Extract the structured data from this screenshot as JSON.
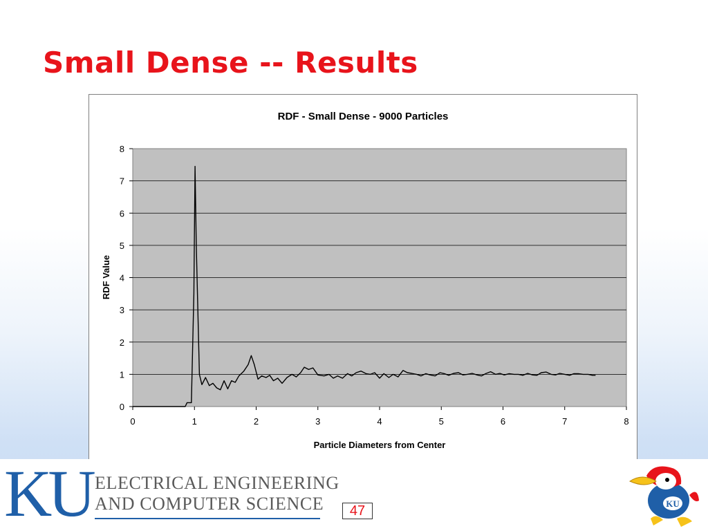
{
  "slide": {
    "title": "Small Dense -- Results",
    "page_number": "47"
  },
  "footer": {
    "logo_text": "KU",
    "dept_line_1": "ELECTRICAL ENGINEERING",
    "dept_line_2": "AND COMPUTER SCIENCE",
    "mascot_badge": "KU"
  },
  "colors": {
    "title": "#e8141b",
    "plot_area": "#c0c0c0",
    "series_line": "#000000",
    "ku_blue": "#1f5fa8"
  },
  "chart_data": {
    "type": "line",
    "title": "RDF - Small Dense - 9000 Particles",
    "xlabel": "Particle Diameters from Center",
    "ylabel": "RDF Value",
    "xlim": [
      0,
      8
    ],
    "ylim": [
      0,
      8
    ],
    "xticks": [
      0,
      1,
      2,
      3,
      4,
      5,
      6,
      7,
      8
    ],
    "yticks": [
      0,
      1,
      2,
      3,
      4,
      5,
      6,
      7,
      8
    ],
    "grid": "horizontal",
    "legend": "none",
    "series": [
      {
        "x": [
          0,
          0.85,
          0.88,
          0.95,
          0.99,
          1.01,
          1.03,
          1.08,
          1.12,
          1.18,
          1.24,
          1.3,
          1.36,
          1.42,
          1.48,
          1.54,
          1.6,
          1.66,
          1.72,
          1.8,
          1.87,
          1.92,
          1.97,
          2.03,
          2.09,
          2.16,
          2.22,
          2.28,
          2.35,
          2.42,
          2.5,
          2.58,
          2.65,
          2.72,
          2.78,
          2.85,
          2.92,
          3.0,
          3.1,
          3.18,
          3.25,
          3.32,
          3.4,
          3.48,
          3.55,
          3.62,
          3.7,
          3.78,
          3.85,
          3.92,
          4.0,
          4.07,
          4.15,
          4.22,
          4.3,
          4.38,
          4.45,
          4.52,
          4.6,
          4.67,
          4.75,
          4.82,
          4.9,
          4.98,
          5.05,
          5.12,
          5.2,
          5.28,
          5.35,
          5.42,
          5.5,
          5.58,
          5.65,
          5.72,
          5.8,
          5.88,
          5.95,
          6.02,
          6.1,
          6.18,
          6.25,
          6.32,
          6.4,
          6.48,
          6.55,
          6.62,
          6.7,
          6.78,
          6.85,
          6.92,
          7.0,
          7.08,
          7.15,
          7.22,
          7.3,
          7.38,
          7.45,
          7.5
        ],
        "y": [
          0,
          0,
          0.12,
          0.12,
          3.5,
          7.45,
          5.0,
          1.0,
          0.68,
          0.9,
          0.65,
          0.72,
          0.58,
          0.52,
          0.8,
          0.55,
          0.8,
          0.75,
          0.95,
          1.1,
          1.3,
          1.58,
          1.3,
          0.85,
          0.95,
          0.9,
          0.97,
          0.8,
          0.88,
          0.72,
          0.9,
          1.0,
          0.92,
          1.05,
          1.22,
          1.15,
          1.2,
          0.98,
          0.95,
          1.0,
          0.88,
          0.95,
          0.88,
          1.02,
          0.95,
          1.05,
          1.1,
          1.02,
          1.0,
          1.05,
          0.88,
          1.02,
          0.9,
          1.0,
          0.92,
          1.12,
          1.05,
          1.03,
          1.0,
          0.95,
          1.02,
          0.98,
          0.95,
          1.05,
          1.02,
          0.97,
          1.03,
          1.05,
          0.98,
          1.0,
          1.03,
          0.98,
          0.95,
          1.02,
          1.08,
          1.0,
          1.03,
          0.98,
          1.02,
          1.0,
          1.0,
          0.97,
          1.03,
          0.98,
          0.97,
          1.05,
          1.07,
          1.0,
          0.98,
          1.03,
          1.0,
          0.97,
          1.02,
          1.02,
          1.0,
          1.0,
          0.97,
          0.97
        ]
      }
    ]
  }
}
